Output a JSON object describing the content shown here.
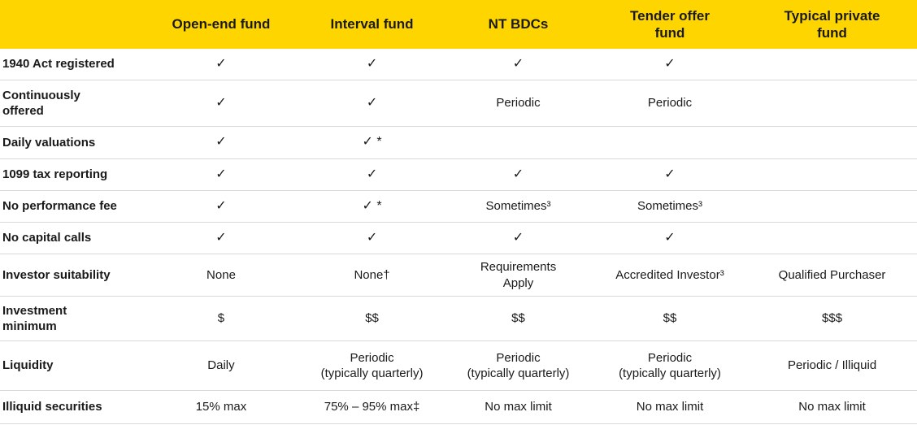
{
  "colors": {
    "header_bg": "#FFD500",
    "text": "#1A1A1A",
    "divider": "#D9D9D9"
  },
  "table": {
    "corner_label": "",
    "columns": [
      "Open-end fund",
      "Interval fund",
      "NT BDCs",
      "Tender offer\nfund",
      "Typical private\nfund"
    ],
    "rows": [
      {
        "label": "1940 Act registered",
        "cells": [
          "✓",
          "✓",
          "✓",
          "✓",
          ""
        ]
      },
      {
        "label": "Continuously\noffered",
        "cells": [
          "✓",
          "✓",
          "Periodic",
          "Periodic",
          ""
        ]
      },
      {
        "label": "Daily valuations",
        "cells": [
          "✓",
          "✓ *",
          "",
          "",
          ""
        ]
      },
      {
        "label": "1099 tax reporting",
        "cells": [
          "✓",
          "✓",
          "✓",
          "✓",
          ""
        ]
      },
      {
        "label": "No performance fee",
        "cells": [
          "✓",
          "✓ *",
          "Sometimes³",
          "Sometimes³",
          ""
        ]
      },
      {
        "label": "No capital calls",
        "cells": [
          "✓",
          "✓",
          "✓",
          "✓",
          ""
        ]
      },
      {
        "label": "Investor suitability",
        "cells": [
          "None",
          "None†",
          "Requirements\nApply",
          "Accredited Investor³",
          "Qualified Purchaser"
        ]
      },
      {
        "label": "Investment\nminimum",
        "cells": [
          "$",
          "$$",
          "$$",
          "$$",
          "$$$"
        ]
      },
      {
        "label": "Liquidity",
        "cells": [
          "Daily",
          "Periodic\n(typically quarterly)",
          "Periodic\n(typically quarterly)",
          "Periodic\n(typically quarterly)",
          "Periodic / Illiquid"
        ]
      },
      {
        "label": "Illiquid securities",
        "cells": [
          "15% max",
          "75% – 95% max‡",
          "No max limit",
          "No max limit",
          "No max limit"
        ]
      }
    ]
  }
}
